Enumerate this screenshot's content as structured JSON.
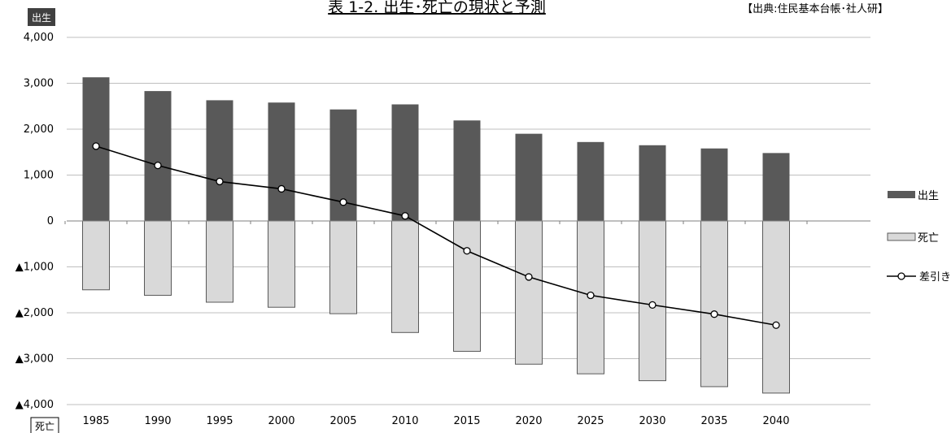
{
  "header": {
    "title": "表 1-2.  出生･死亡の現状と予測",
    "source": "【出典:住民基本台帳･社人研】"
  },
  "axis_tags": {
    "top": "出生",
    "bottom": "死亡"
  },
  "colors": {
    "births": "#595959",
    "deaths": "#d9d9d9",
    "deaths_border": "#595959",
    "net": "#000000",
    "grid": "#bfbfbf"
  },
  "chart_data": {
    "type": "bar",
    "categories": [
      "1985",
      "1990",
      "1995",
      "2000",
      "2005",
      "2010",
      "2015",
      "2020",
      "2025",
      "2030",
      "2035",
      "2040"
    ],
    "series": [
      {
        "name": "出生",
        "type": "bar",
        "values": [
          3130,
          2830,
          2630,
          2580,
          2430,
          2540,
          2190,
          1900,
          1720,
          1650,
          1580,
          1480
        ]
      },
      {
        "name": "死亡",
        "type": "bar",
        "values": [
          -1500,
          -1620,
          -1770,
          -1880,
          -2020,
          -2430,
          -2840,
          -3120,
          -3330,
          -3480,
          -3610,
          -3750
        ]
      },
      {
        "name": "差引き",
        "type": "line",
        "values": [
          1630,
          1210,
          860,
          700,
          410,
          110,
          -650,
          -1220,
          -1620,
          -1830,
          -2030,
          -2270
        ]
      }
    ],
    "yticks": [
      "4,000",
      "3,000",
      "2,000",
      "1,000",
      "0",
      "▲1,000",
      "▲2,000",
      "▲3,000",
      "▲4,000"
    ],
    "ylim": [
      -4000,
      4000
    ],
    "grid": true,
    "legend_position": "right"
  }
}
